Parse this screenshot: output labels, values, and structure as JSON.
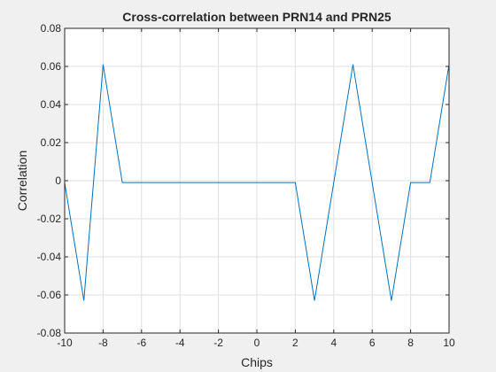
{
  "chart_data": {
    "type": "line",
    "title": "Cross-correlation between PRN14 and PRN25",
    "xlabel": "Chips",
    "ylabel": "Correlation",
    "xlim": [
      -10,
      10
    ],
    "ylim": [
      -0.08,
      0.08
    ],
    "grid": true,
    "xticks": [
      -10,
      -8,
      -6,
      -4,
      -2,
      0,
      2,
      4,
      6,
      8,
      10
    ],
    "yticks": [
      -0.08,
      -0.06,
      -0.04,
      -0.02,
      0,
      0.02,
      0.04,
      0.06,
      0.08
    ],
    "xtick_labels": [
      "-10",
      "-8",
      "-6",
      "-4",
      "-2",
      "0",
      "2",
      "4",
      "6",
      "8",
      "10"
    ],
    "ytick_labels": [
      "-0.08",
      "-0.06",
      "-0.04",
      "-0.02",
      "0",
      "0.02",
      "0.04",
      "0.06",
      "0.08"
    ],
    "series": [
      {
        "color": "#0072bd",
        "x": [
          -10,
          -9,
          -8,
          -7,
          -6,
          -5,
          -4,
          -3,
          -2,
          -1,
          0,
          1,
          2,
          3,
          4,
          5,
          6,
          7,
          8,
          9,
          10
        ],
        "y": [
          -0.001,
          -0.063,
          0.061,
          -0.001,
          -0.001,
          -0.001,
          -0.001,
          -0.001,
          -0.001,
          -0.001,
          -0.001,
          -0.001,
          -0.001,
          -0.063,
          -0.001,
          0.061,
          -0.001,
          -0.063,
          -0.001,
          -0.001,
          0.061
        ]
      }
    ]
  }
}
